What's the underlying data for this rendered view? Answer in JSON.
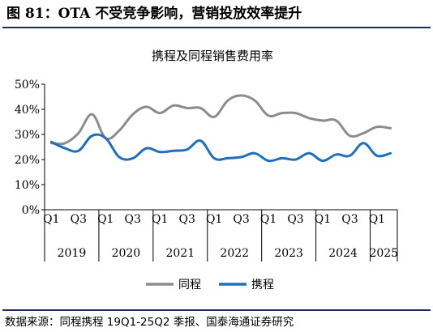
{
  "figure": {
    "header": "图 81：OTA 不受竞争影响，营销投放效率提升",
    "source": "数据来源：同程携程 19Q1-25Q2 季报、国泰海通证券研究"
  },
  "chart_data": {
    "type": "line",
    "title": "携程及同程销售费用率",
    "xlabel": "",
    "ylabel": "",
    "ylim": [
      0,
      50
    ],
    "yticks": [
      "0%",
      "10%",
      "20%",
      "30%",
      "40%",
      "50%"
    ],
    "grid": false,
    "legend_position": "bottom",
    "x": [
      "19Q1",
      "19Q2",
      "19Q3",
      "19Q4",
      "20Q1",
      "20Q2",
      "20Q3",
      "20Q4",
      "21Q1",
      "21Q2",
      "21Q3",
      "21Q4",
      "22Q1",
      "22Q2",
      "22Q3",
      "22Q4",
      "23Q1",
      "23Q2",
      "23Q3",
      "23Q4",
      "24Q1",
      "24Q2",
      "24Q3",
      "24Q4",
      "25Q1",
      "25Q2"
    ],
    "quarter_tick_labels": [
      "Q1",
      "Q3",
      "Q1",
      "Q3",
      "Q1",
      "Q3",
      "Q1",
      "Q3",
      "Q1",
      "Q3",
      "Q1",
      "Q3",
      "Q1"
    ],
    "year_labels": [
      "2019",
      "2020",
      "2021",
      "2022",
      "2023",
      "2024",
      "2025"
    ],
    "series": [
      {
        "name": "同程",
        "color": "#8c8c8c",
        "values": [
          26.5,
          26.5,
          30.5,
          38.0,
          28.5,
          31.5,
          38.0,
          41.0,
          38.5,
          41.5,
          40.5,
          40.5,
          37.0,
          43.5,
          45.5,
          43.5,
          37.5,
          38.5,
          38.5,
          36.5,
          35.5,
          35.5,
          29.5,
          30.5,
          33.0,
          32.5
        ]
      },
      {
        "name": "携程",
        "color": "#1f6fbf",
        "values": [
          27.0,
          24.5,
          23.5,
          29.5,
          28.5,
          21.0,
          20.5,
          24.5,
          23.0,
          23.5,
          24.0,
          27.5,
          20.5,
          20.5,
          21.0,
          22.5,
          19.5,
          20.5,
          20.0,
          22.5,
          19.5,
          22.0,
          21.5,
          26.5,
          21.5,
          22.5
        ]
      }
    ]
  }
}
